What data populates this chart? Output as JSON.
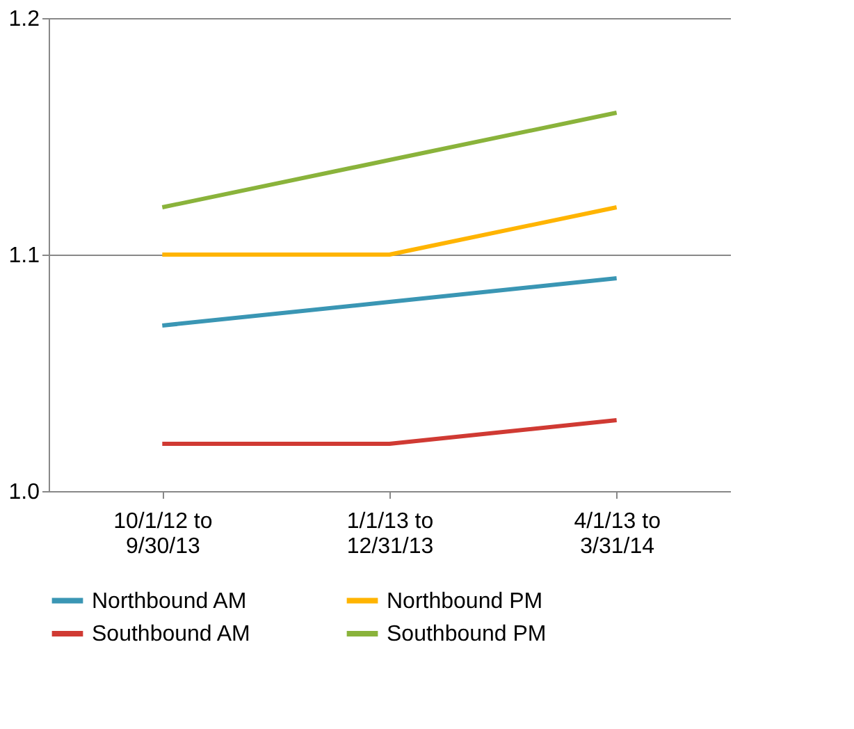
{
  "chart_data": {
    "type": "line",
    "categories": [
      "10/1/12 to\n9/30/13",
      "1/1/13 to\n12/31/13",
      "4/1/13 to\n3/31/14"
    ],
    "series": [
      {
        "name": "Northbound AM",
        "color": "#3a96b4",
        "values": [
          1.07,
          1.08,
          1.09
        ]
      },
      {
        "name": "Northbound PM",
        "color": "#ffb400",
        "values": [
          1.1,
          1.1,
          1.12
        ]
      },
      {
        "name": "Southbound AM",
        "color": "#d03a33",
        "values": [
          1.02,
          1.02,
          1.03
        ]
      },
      {
        "name": "Southbound PM",
        "color": "#8ab33b",
        "values": [
          1.12,
          1.14,
          1.16
        ]
      }
    ],
    "ylim": [
      1.0,
      1.2
    ],
    "yticks": [
      {
        "value": 1.0,
        "label": "1.0"
      },
      1.1,
      1.2
    ],
    "grid": "y",
    "legend": "bottom",
    "marker": "none",
    "line_style": "solid"
  }
}
